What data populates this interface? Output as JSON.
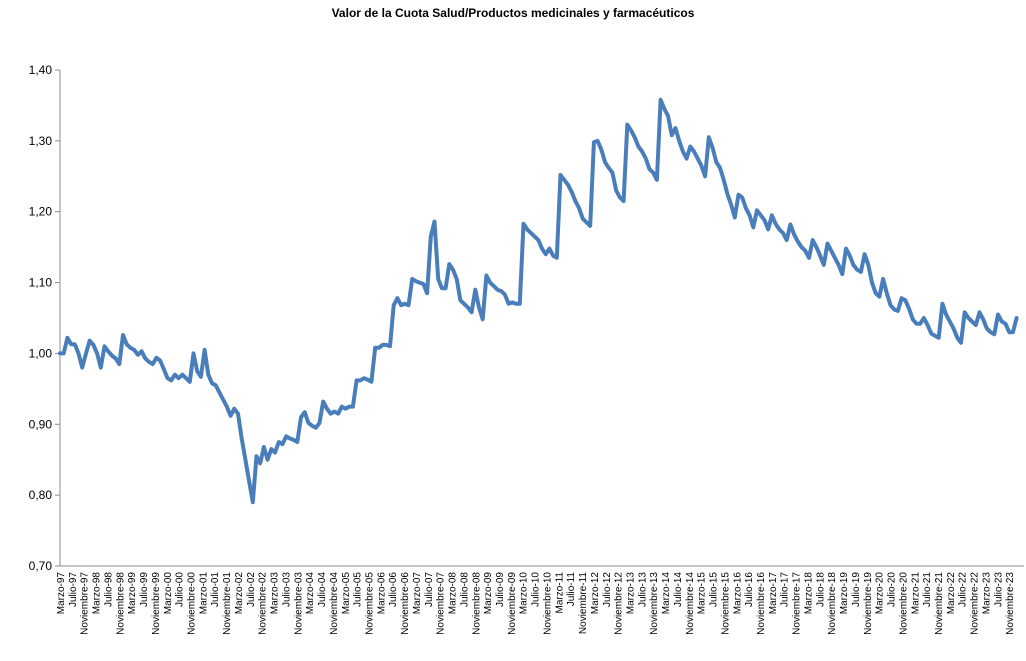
{
  "chart_data": {
    "type": "line",
    "title": "Valor de la Cuota Salud/Productos medicinales y farmacéuticos",
    "xlabel": "",
    "ylabel": "",
    "ylim": [
      0.7,
      1.4
    ],
    "yticks": [
      "0,70",
      "0,80",
      "0,90",
      "1,00",
      "1,10",
      "1,20",
      "1,30",
      "1,40"
    ],
    "grid": false,
    "legend": "none",
    "line_color": "#4a7ebb",
    "x_start": "Marzo-97",
    "x_end": "Noviembre-23",
    "x_tick_labels": [
      "Marzo-97",
      "Julio-97",
      "Noviembre-97",
      "Marzo-98",
      "Julio-98",
      "Noviembre-98",
      "Marzo-99",
      "Julio-99",
      "Noviembre-99",
      "Marzo-00",
      "Julio-00",
      "Noviembre-00",
      "Marzo-01",
      "Julio-01",
      "Noviembre-01",
      "Marzo-02",
      "Julio-02",
      "Noviembre-02",
      "Marzo-03",
      "Julio-03",
      "Noviembre-03",
      "Marzo-04",
      "Julio-04",
      "Noviembre-04",
      "Marzo-05",
      "Julio-05",
      "Noviembre-05",
      "Marzo-06",
      "Julio-06",
      "Noviembre-06",
      "Marzo-07",
      "Julio-07",
      "Noviembre-07",
      "Marzo-08",
      "Julio-08",
      "Noviembre-08",
      "Marzo-09",
      "Julio-09",
      "Noviembre-09",
      "Marzo-10",
      "Julio-10",
      "Noviembre-10",
      "Marzo-11",
      "Julio-11",
      "Noviembre-11",
      "Marzo-12",
      "Julio-12",
      "Noviembre-12",
      "Marzo-13",
      "Julio-13",
      "Noviembre-13",
      "Marzo-14",
      "Julio-14",
      "Noviembre-14",
      "Marzo-15",
      "Julio-15",
      "Noviembre-15",
      "Marzo-16",
      "Julio-16",
      "Noviembre-16",
      "Marzo-17",
      "Julio-17",
      "Noviembre-17",
      "Marzo-18",
      "Julio-18",
      "Noviembre-18",
      "Marzo-19",
      "Julio-19",
      "Noviembre-19",
      "Marzo-20",
      "Julio-20",
      "Noviembre-20",
      "Marzo-21",
      "Julio-21",
      "Noviembre-21",
      "Marzo-22",
      "Julio-22",
      "Noviembre-22",
      "Marzo-23",
      "Julio-23",
      "Noviembre-23"
    ],
    "series": [
      {
        "values": [
          [
            0,
            1.0
          ],
          [
            1,
            1.0
          ],
          [
            2,
            1.022
          ],
          [
            3,
            1.013
          ],
          [
            4,
            1.013
          ],
          [
            5,
            1.0
          ],
          [
            6,
            0.98
          ],
          [
            7,
            1.0
          ],
          [
            8,
            1.018
          ],
          [
            9,
            1.012
          ],
          [
            10,
            1.0
          ],
          [
            11,
            0.98
          ],
          [
            12,
            1.01
          ],
          [
            13,
            1.003
          ],
          [
            14,
            0.997
          ],
          [
            15,
            0.993
          ],
          [
            16,
            0.985
          ],
          [
            17,
            1.026
          ],
          [
            18,
            1.013
          ],
          [
            19,
            1.008
          ],
          [
            20,
            1.005
          ],
          [
            21,
            0.998
          ],
          [
            22,
            1.003
          ],
          [
            23,
            0.993
          ],
          [
            24,
            0.988
          ],
          [
            25,
            0.985
          ],
          [
            26,
            0.994
          ],
          [
            27,
            0.99
          ],
          [
            28,
            0.978
          ],
          [
            29,
            0.965
          ],
          [
            30,
            0.962
          ],
          [
            31,
            0.97
          ],
          [
            32,
            0.965
          ],
          [
            33,
            0.97
          ],
          [
            34,
            0.965
          ],
          [
            35,
            0.96
          ],
          [
            36,
            1.0
          ],
          [
            37,
            0.975
          ],
          [
            38,
            0.967
          ],
          [
            39,
            1.005
          ],
          [
            40,
            0.97
          ],
          [
            41,
            0.958
          ],
          [
            42,
            0.955
          ],
          [
            43,
            0.945
          ],
          [
            44,
            0.935
          ],
          [
            45,
            0.925
          ],
          [
            46,
            0.912
          ],
          [
            47,
            0.922
          ],
          [
            48,
            0.915
          ],
          [
            49,
            0.88
          ],
          [
            50,
            0.85
          ],
          [
            51,
            0.82
          ],
          [
            52,
            0.79
          ],
          [
            53,
            0.855
          ],
          [
            54,
            0.845
          ],
          [
            55,
            0.868
          ],
          [
            56,
            0.85
          ],
          [
            57,
            0.865
          ],
          [
            58,
            0.86
          ],
          [
            59,
            0.875
          ],
          [
            60,
            0.872
          ],
          [
            61,
            0.883
          ],
          [
            62,
            0.88
          ],
          [
            63,
            0.878
          ],
          [
            64,
            0.875
          ],
          [
            65,
            0.91
          ],
          [
            66,
            0.917
          ],
          [
            67,
            0.902
          ],
          [
            68,
            0.898
          ],
          [
            69,
            0.895
          ],
          [
            70,
            0.902
          ],
          [
            71,
            0.932
          ],
          [
            72,
            0.922
          ],
          [
            73,
            0.915
          ],
          [
            74,
            0.918
          ],
          [
            75,
            0.915
          ],
          [
            76,
            0.925
          ],
          [
            77,
            0.922
          ],
          [
            78,
            0.925
          ],
          [
            79,
            0.925
          ],
          [
            80,
            0.962
          ],
          [
            81,
            0.962
          ],
          [
            82,
            0.965
          ],
          [
            83,
            0.963
          ],
          [
            84,
            0.96
          ],
          [
            85,
            1.008
          ],
          [
            86,
            1.008
          ],
          [
            87,
            1.012
          ],
          [
            88,
            1.012
          ],
          [
            89,
            1.01
          ],
          [
            90,
            1.068
          ],
          [
            91,
            1.078
          ],
          [
            92,
            1.068
          ],
          [
            93,
            1.07
          ],
          [
            94,
            1.068
          ],
          [
            95,
            1.105
          ],
          [
            96,
            1.102
          ],
          [
            97,
            1.1
          ],
          [
            98,
            1.098
          ],
          [
            99,
            1.085
          ],
          [
            100,
            1.165
          ],
          [
            101,
            1.186
          ],
          [
            102,
            1.105
          ],
          [
            103,
            1.092
          ],
          [
            104,
            1.092
          ],
          [
            105,
            1.126
          ],
          [
            106,
            1.118
          ],
          [
            107,
            1.105
          ],
          [
            108,
            1.075
          ],
          [
            109,
            1.07
          ],
          [
            110,
            1.065
          ],
          [
            111,
            1.058
          ],
          [
            112,
            1.09
          ],
          [
            113,
            1.065
          ],
          [
            114,
            1.048
          ],
          [
            115,
            1.11
          ],
          [
            116,
            1.1
          ],
          [
            117,
            1.095
          ],
          [
            118,
            1.09
          ],
          [
            119,
            1.088
          ],
          [
            120,
            1.083
          ],
          [
            121,
            1.07
          ],
          [
            122,
            1.072
          ],
          [
            123,
            1.07
          ],
          [
            124,
            1.07
          ],
          [
            125,
            1.183
          ],
          [
            126,
            1.175
          ],
          [
            127,
            1.17
          ],
          [
            128,
            1.165
          ],
          [
            129,
            1.16
          ],
          [
            130,
            1.148
          ],
          [
            131,
            1.14
          ],
          [
            132,
            1.148
          ],
          [
            133,
            1.138
          ],
          [
            134,
            1.135
          ],
          [
            135,
            1.252
          ],
          [
            136,
            1.245
          ],
          [
            137,
            1.238
          ],
          [
            138,
            1.228
          ],
          [
            139,
            1.215
          ],
          [
            140,
            1.205
          ],
          [
            141,
            1.19
          ],
          [
            142,
            1.185
          ],
          [
            143,
            1.18
          ],
          [
            144,
            1.298
          ],
          [
            145,
            1.3
          ],
          [
            146,
            1.288
          ],
          [
            147,
            1.27
          ],
          [
            148,
            1.262
          ],
          [
            149,
            1.255
          ],
          [
            150,
            1.23
          ],
          [
            151,
            1.22
          ],
          [
            152,
            1.215
          ],
          [
            153,
            1.323
          ],
          [
            154,
            1.315
          ],
          [
            155,
            1.305
          ],
          [
            156,
            1.292
          ],
          [
            157,
            1.285
          ],
          [
            158,
            1.275
          ],
          [
            159,
            1.26
          ],
          [
            160,
            1.255
          ],
          [
            161,
            1.245
          ],
          [
            162,
            1.358
          ],
          [
            163,
            1.345
          ],
          [
            164,
            1.335
          ],
          [
            165,
            1.308
          ],
          [
            166,
            1.318
          ],
          [
            167,
            1.3
          ],
          [
            168,
            1.285
          ],
          [
            169,
            1.275
          ],
          [
            170,
            1.292
          ],
          [
            171,
            1.285
          ],
          [
            172,
            1.275
          ],
          [
            173,
            1.265
          ],
          [
            174,
            1.25
          ],
          [
            175,
            1.305
          ],
          [
            176,
            1.29
          ],
          [
            177,
            1.27
          ],
          [
            178,
            1.262
          ],
          [
            179,
            1.245
          ],
          [
            180,
            1.225
          ],
          [
            181,
            1.21
          ],
          [
            182,
            1.192
          ],
          [
            183,
            1.224
          ],
          [
            184,
            1.22
          ],
          [
            185,
            1.205
          ],
          [
            186,
            1.195
          ],
          [
            187,
            1.178
          ],
          [
            188,
            1.202
          ],
          [
            189,
            1.195
          ],
          [
            190,
            1.188
          ],
          [
            191,
            1.175
          ],
          [
            192,
            1.195
          ],
          [
            193,
            1.183
          ],
          [
            194,
            1.175
          ],
          [
            195,
            1.17
          ],
          [
            196,
            1.16
          ],
          [
            197,
            1.182
          ],
          [
            198,
            1.168
          ],
          [
            199,
            1.158
          ],
          [
            200,
            1.15
          ],
          [
            201,
            1.145
          ],
          [
            202,
            1.135
          ],
          [
            203,
            1.16
          ],
          [
            204,
            1.15
          ],
          [
            205,
            1.138
          ],
          [
            206,
            1.125
          ],
          [
            207,
            1.155
          ],
          [
            208,
            1.145
          ],
          [
            209,
            1.135
          ],
          [
            210,
            1.125
          ],
          [
            211,
            1.112
          ],
          [
            212,
            1.148
          ],
          [
            213,
            1.138
          ],
          [
            214,
            1.125
          ],
          [
            215,
            1.118
          ],
          [
            216,
            1.115
          ],
          [
            217,
            1.14
          ],
          [
            218,
            1.125
          ],
          [
            219,
            1.1
          ],
          [
            220,
            1.085
          ],
          [
            221,
            1.08
          ],
          [
            222,
            1.105
          ],
          [
            223,
            1.085
          ],
          [
            224,
            1.068
          ],
          [
            225,
            1.062
          ],
          [
            226,
            1.06
          ],
          [
            227,
            1.078
          ],
          [
            228,
            1.075
          ],
          [
            229,
            1.063
          ],
          [
            230,
            1.048
          ],
          [
            231,
            1.042
          ],
          [
            232,
            1.042
          ],
          [
            233,
            1.05
          ],
          [
            234,
            1.04
          ],
          [
            235,
            1.028
          ],
          [
            236,
            1.025
          ],
          [
            237,
            1.022
          ],
          [
            238,
            1.07
          ],
          [
            239,
            1.055
          ],
          [
            240,
            1.045
          ],
          [
            241,
            1.035
          ],
          [
            242,
            1.022
          ],
          [
            243,
            1.015
          ],
          [
            244,
            1.058
          ],
          [
            245,
            1.05
          ],
          [
            246,
            1.045
          ],
          [
            247,
            1.04
          ],
          [
            248,
            1.058
          ],
          [
            249,
            1.048
          ],
          [
            250,
            1.035
          ],
          [
            251,
            1.03
          ],
          [
            252,
            1.027
          ],
          [
            253,
            1.055
          ],
          [
            254,
            1.045
          ],
          [
            255,
            1.042
          ],
          [
            256,
            1.03
          ],
          [
            257,
            1.03
          ],
          [
            258,
            1.05
          ]
        ]
      }
    ]
  }
}
